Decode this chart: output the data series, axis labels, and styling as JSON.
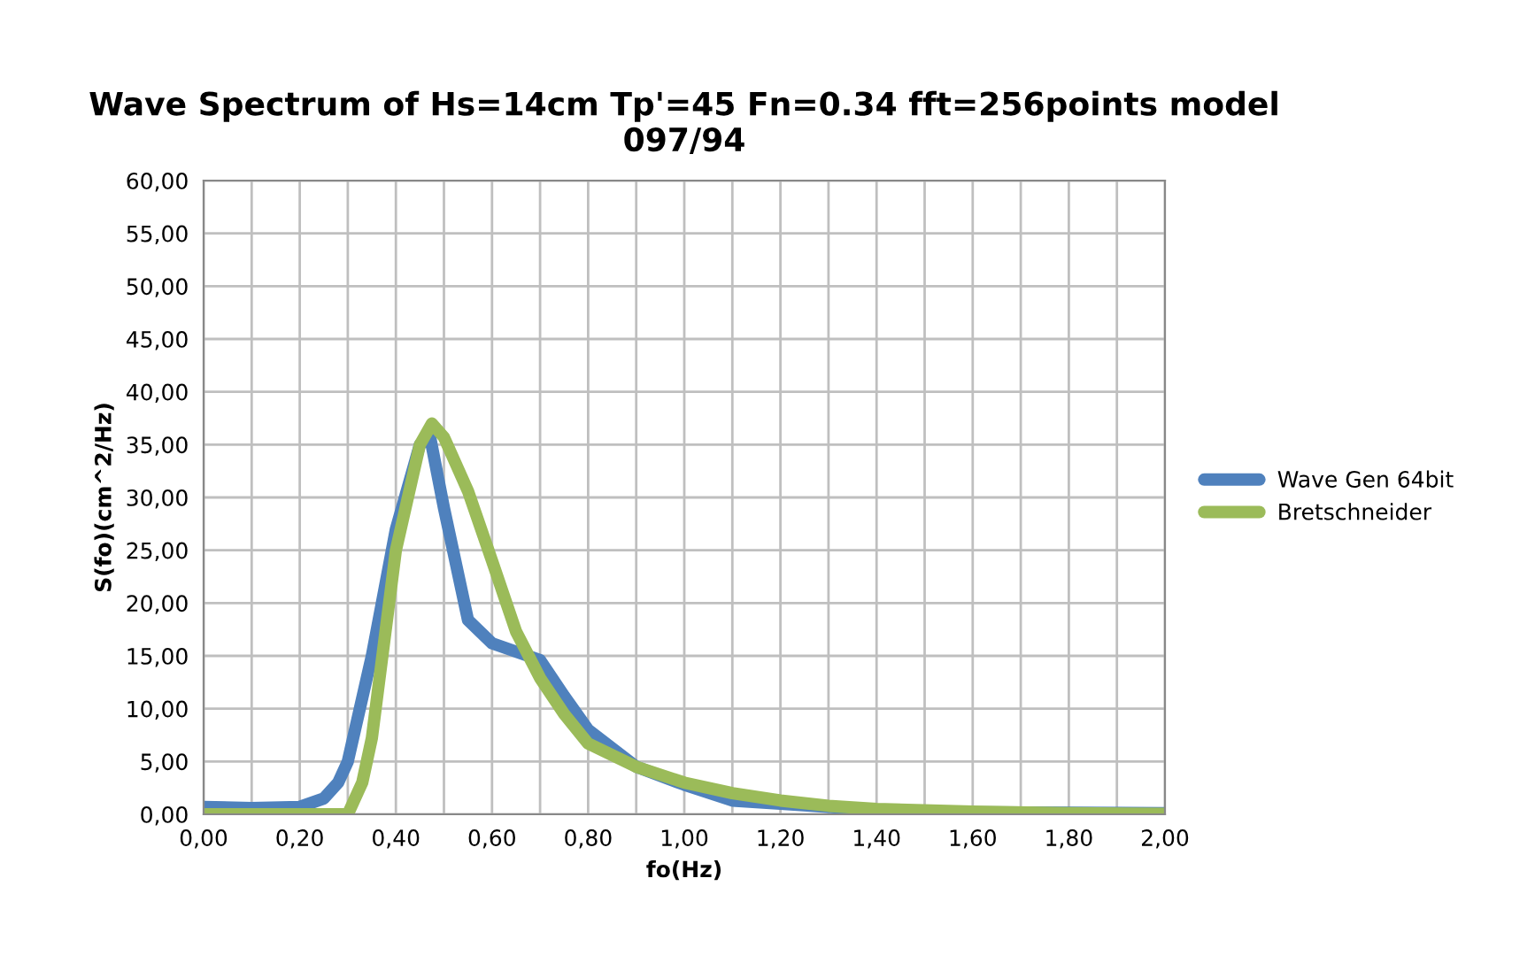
{
  "chart_data": {
    "type": "line",
    "title": "Wave Spectrum of Hs=14cm Tp'=45 Fn=0.34 fft=256points model\n097/94",
    "xlabel": "fo(Hz)",
    "ylabel": "S(fo)(cm^2/Hz)",
    "xlim": [
      0,
      2
    ],
    "ylim": [
      0,
      60
    ],
    "xticks": [
      {
        "value": 0,
        "label": "0,00"
      },
      {
        "value": 0.1,
        "label": null
      },
      {
        "value": 0.2,
        "label": "0,20"
      },
      {
        "value": 0.3,
        "label": null
      },
      {
        "value": 0.4,
        "label": "0,40"
      },
      {
        "value": 0.5,
        "label": null
      },
      {
        "value": 0.6,
        "label": "0,60"
      },
      {
        "value": 0.7,
        "label": null
      },
      {
        "value": 0.8,
        "label": "0,80"
      },
      {
        "value": 0.9,
        "label": null
      },
      {
        "value": 1.0,
        "label": "1,00"
      },
      {
        "value": 1.1,
        "label": null
      },
      {
        "value": 1.2,
        "label": "1,20"
      },
      {
        "value": 1.3,
        "label": null
      },
      {
        "value": 1.4,
        "label": "1,40"
      },
      {
        "value": 1.5,
        "label": null
      },
      {
        "value": 1.6,
        "label": "1,60"
      },
      {
        "value": 1.7,
        "label": null
      },
      {
        "value": 1.8,
        "label": "1,80"
      },
      {
        "value": 1.9,
        "label": null
      },
      {
        "value": 2.0,
        "label": "2,00"
      }
    ],
    "yticks": [
      {
        "value": 0,
        "label": "0,00"
      },
      {
        "value": 5,
        "label": "5,00"
      },
      {
        "value": 10,
        "label": "10,00"
      },
      {
        "value": 15,
        "label": "15,00"
      },
      {
        "value": 20,
        "label": "20,00"
      },
      {
        "value": 25,
        "label": "25,00"
      },
      {
        "value": 30,
        "label": "30,00"
      },
      {
        "value": 35,
        "label": "35,00"
      },
      {
        "value": 40,
        "label": "40,00"
      },
      {
        "value": 45,
        "label": "45,00"
      },
      {
        "value": 50,
        "label": "50,00"
      },
      {
        "value": 55,
        "label": "55,00"
      },
      {
        "value": 60,
        "label": "60,00"
      }
    ],
    "grid": true,
    "legend": "right",
    "marker": "none",
    "line_style": "solid",
    "series": [
      {
        "name": "Wave Gen 64bit",
        "color": "#4f81bd",
        "x": [
          0,
          0.1,
          0.2,
          0.25,
          0.28,
          0.3,
          0.35,
          0.4,
          0.45,
          0.47,
          0.5,
          0.55,
          0.6,
          0.65,
          0.7,
          0.75,
          0.8,
          0.9,
          1.0,
          1.1,
          1.2,
          1.4,
          1.6,
          2.0
        ],
        "values": [
          0.7,
          0.6,
          0.7,
          1.5,
          3,
          5,
          15,
          27,
          35,
          36,
          29,
          18.4,
          16.2,
          15.4,
          14.6,
          11.2,
          8,
          4.5,
          2.8,
          1.3,
          1,
          0.4,
          0.2,
          0.1
        ]
      },
      {
        "name": "Bretschneider",
        "color": "#9bbb59",
        "x": [
          0,
          0.2,
          0.3,
          0.33,
          0.35,
          0.4,
          0.45,
          0.475,
          0.5,
          0.55,
          0.6,
          0.65,
          0.7,
          0.75,
          0.8,
          0.9,
          1.0,
          1.1,
          1.2,
          1.3,
          1.4,
          1.6,
          1.8,
          2.0
        ],
        "values": [
          0,
          0,
          0,
          3,
          7.2,
          25,
          35,
          37,
          35.7,
          30.6,
          24,
          17.3,
          12.9,
          9.5,
          6.7,
          4.5,
          3,
          2,
          1.3,
          0.8,
          0.5,
          0.25,
          0.1,
          0.05
        ]
      }
    ]
  }
}
